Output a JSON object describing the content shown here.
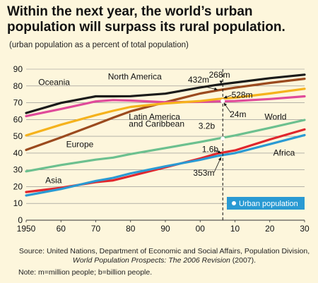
{
  "header": {
    "title_line1": "Within the next year, the world’s urban",
    "title_line2": "population will surpass its rural population.",
    "subtitle": "(urban population as a percent of total population)"
  },
  "footer": {
    "source_line1": "Source: United Nations, Department of Economic and Social Affairs, Population Division,",
    "source_line2_italic": "World Population Prospects: The 2006 Revision",
    "source_line2_rest": " (2007).",
    "note": "Note: m=million people; b=billion people."
  },
  "chart_data": {
    "type": "line",
    "x": [
      1950,
      1960,
      1970,
      1975,
      1980,
      1990,
      2000,
      2005,
      2010,
      2020,
      2030
    ],
    "xticks": [
      1950,
      1960,
      1970,
      1980,
      1990,
      2000,
      2010,
      2020,
      2030
    ],
    "xtick_labels": [
      "1950",
      "60",
      "70",
      "80",
      "90",
      "00",
      "10",
      "20",
      "30"
    ],
    "yticks": [
      0,
      10,
      20,
      30,
      40,
      50,
      60,
      70,
      80,
      90
    ],
    "xlim": [
      1950,
      2030
    ],
    "ylim": [
      0,
      90
    ],
    "grid": "horizontal",
    "marker_year": 2006.5,
    "series": [
      {
        "name": "North America",
        "color": "#1a1a1a",
        "values": [
          63.9,
          69.9,
          73.8,
          73.8,
          73.9,
          75.4,
          79.1,
          80.7,
          82.0,
          84.6,
          86.7
        ]
      },
      {
        "name": "Latin America and Caribbean",
        "color": "#9b4a1e",
        "values": [
          41.9,
          49.3,
          57.1,
          61.1,
          64.9,
          70.3,
          75.5,
          77.4,
          79.0,
          81.8,
          84.3
        ]
      },
      {
        "name": "Oceania",
        "color": "#e04a9a",
        "values": [
          62.0,
          66.3,
          70.8,
          71.6,
          71.3,
          70.3,
          70.5,
          70.8,
          71.0,
          72.2,
          73.8
        ]
      },
      {
        "name": "Europe",
        "color": "#f5b21c",
        "values": [
          50.5,
          56.9,
          62.6,
          65.2,
          67.5,
          69.6,
          71.0,
          72.2,
          73.0,
          75.5,
          78.3
        ]
      },
      {
        "name": "World",
        "color": "#6cc08f",
        "values": [
          29.1,
          32.9,
          36.1,
          37.3,
          39.4,
          43.0,
          46.6,
          48.6,
          50.5,
          55.0,
          59.7
        ]
      },
      {
        "name": "Asia",
        "color": "#e0262d",
        "values": [
          16.8,
          19.3,
          22.7,
          23.7,
          26.3,
          31.5,
          36.8,
          39.8,
          41.6,
          48.1,
          54.1
        ]
      },
      {
        "name": "Africa",
        "color": "#2a9ad3",
        "values": [
          14.7,
          18.6,
          23.4,
          25.2,
          27.9,
          32.1,
          36.0,
          38.3,
          40.0,
          45.3,
          50.7
        ]
      }
    ],
    "labels": [
      {
        "text": "Oceania",
        "x": 1953.5,
        "y": 80.5,
        "anchor": "start"
      },
      {
        "text": "North America",
        "x": 1973.5,
        "y": 84.0,
        "anchor": "start"
      },
      {
        "text": "Latin America",
        "x": 1979.5,
        "y": 60.0,
        "anchor": "start"
      },
      {
        "text": "and Caribbean",
        "x": 1979.5,
        "y": 55.8,
        "anchor": "start"
      },
      {
        "text": "Europe",
        "x": 1961.5,
        "y": 43.5,
        "anchor": "start"
      },
      {
        "text": "World",
        "x": 2018.5,
        "y": 60.0,
        "anchor": "start"
      },
      {
        "text": "Asia",
        "x": 1955.5,
        "y": 22.0,
        "anchor": "start"
      },
      {
        "text": "Africa",
        "x": 2021.0,
        "y": 38.5,
        "anchor": "start"
      }
    ],
    "annotations": [
      {
        "text": "432m",
        "x": 1996.5,
        "y": 82.0,
        "anchor": "start"
      },
      {
        "text": "268m",
        "x": 2002.5,
        "y": 85.0,
        "anchor": "start"
      },
      {
        "text": "528m",
        "x": 2009.0,
        "y": 73.0,
        "anchor": "start"
      },
      {
        "text": "24m",
        "x": 2008.5,
        "y": 61.5,
        "anchor": "start"
      },
      {
        "text": "3.2b",
        "x": 1999.5,
        "y": 54.5,
        "anchor": "start"
      },
      {
        "text": "1.6b",
        "x": 2000.5,
        "y": 40.5,
        "anchor": "start"
      },
      {
        "text": "353m",
        "x": 1998.0,
        "y": 26.5,
        "anchor": "start"
      }
    ],
    "arrows": [
      {
        "from": [
          2001.5,
          79.5
        ],
        "to": [
          2005.0,
          77.8
        ]
      },
      {
        "from": [
          2006.0,
          83.0
        ],
        "to": [
          2006.0,
          81.2
        ]
      },
      {
        "from": [
          2009.0,
          74.5
        ],
        "to": [
          2006.8,
          72.8
        ]
      },
      {
        "from": [
          2008.8,
          64.0
        ],
        "to": [
          2006.8,
          70.0
        ]
      },
      {
        "from": [
          2004.0,
          42.0
        ],
        "to": [
          2006.0,
          40.0
        ]
      },
      {
        "from": [
          2004.0,
          28.5
        ],
        "to": [
          2006.0,
          37.5
        ]
      }
    ],
    "points": [
      {
        "x": 2006.5,
        "y": 71.0
      },
      {
        "x": 2006.5,
        "y": 48.6
      }
    ],
    "legend": {
      "text": "Urban population",
      "position": "bottom-right"
    }
  }
}
